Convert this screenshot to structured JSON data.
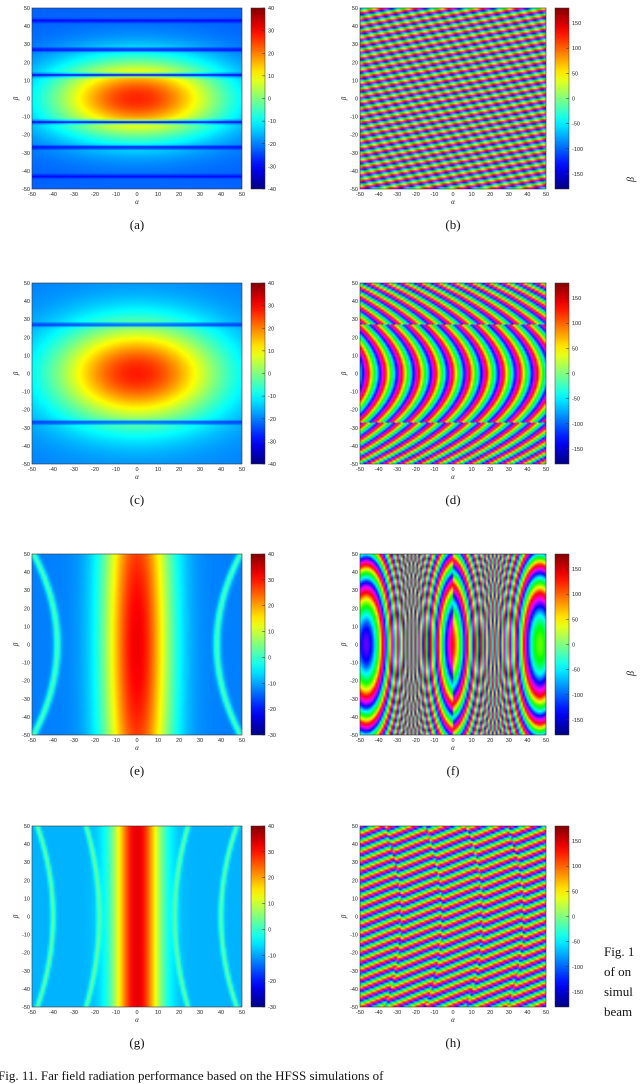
{
  "caption": {
    "main": "Fig. 11.  Far field radiation performance based on the HFSS simulations of",
    "side_lines": [
      "Fig. 1",
      "of on",
      "simul",
      "beam"
    ],
    "side_axis_symbols": [
      "β",
      "β"
    ]
  },
  "chart_data": [
    {
      "label": "(a)",
      "type": "heatmap",
      "kind": "magnitude",
      "pattern": "horizontal_lobes",
      "nulls_beta": [
        -43,
        -27,
        -13,
        13,
        27,
        43
      ],
      "xlabel": "α",
      "ylabel": "β",
      "xlim": [
        -50,
        50
      ],
      "ylim": [
        -50,
        50
      ],
      "xticks": [
        -50,
        -40,
        -30,
        -20,
        -10,
        0,
        10,
        20,
        30,
        40,
        50
      ],
      "yticks": [
        -50,
        -40,
        -30,
        -20,
        -10,
        0,
        10,
        20,
        30,
        40,
        50
      ],
      "colorbar": {
        "min": -40,
        "max": 40,
        "ticks": [
          -40,
          -30,
          -20,
          -10,
          0,
          10,
          20,
          30,
          40
        ]
      }
    },
    {
      "label": "(b)",
      "type": "heatmap",
      "kind": "phase",
      "pattern": "diagonal_fringes",
      "xlabel": "α",
      "ylabel": "β",
      "xlim": [
        -50,
        50
      ],
      "ylim": [
        -50,
        50
      ],
      "xticks": [
        -50,
        -40,
        -30,
        -20,
        -10,
        0,
        10,
        20,
        30,
        40,
        50
      ],
      "yticks": [
        -50,
        -40,
        -30,
        -20,
        -10,
        0,
        10,
        20,
        30,
        40,
        50
      ],
      "colorbar": {
        "min": -180,
        "max": 180,
        "ticks": [
          -150,
          -100,
          -50,
          0,
          50,
          100,
          150
        ]
      }
    },
    {
      "label": "(c)",
      "type": "heatmap",
      "kind": "magnitude",
      "pattern": "wide_central_lobe",
      "nulls_beta": [
        -27,
        27
      ],
      "xlabel": "α",
      "ylabel": "β",
      "xlim": [
        -50,
        50
      ],
      "ylim": [
        -50,
        50
      ],
      "xticks": [
        -50,
        -40,
        -30,
        -20,
        -10,
        0,
        10,
        20,
        30,
        40,
        50
      ],
      "yticks": [
        -50,
        -40,
        -30,
        -20,
        -10,
        0,
        10,
        20,
        30,
        40,
        50
      ],
      "colorbar": {
        "min": -40,
        "max": 40,
        "ticks": [
          -40,
          -30,
          -20,
          -10,
          0,
          10,
          20,
          30,
          40
        ]
      }
    },
    {
      "label": "(d)",
      "type": "heatmap",
      "kind": "phase",
      "pattern": "curved_fringes",
      "xlabel": "α",
      "ylabel": "β",
      "xlim": [
        -50,
        50
      ],
      "ylim": [
        -50,
        50
      ],
      "xticks": [
        -50,
        -40,
        -30,
        -20,
        -10,
        0,
        10,
        20,
        30,
        40,
        50
      ],
      "yticks": [
        -50,
        -40,
        -30,
        -20,
        -10,
        0,
        10,
        20,
        30,
        40,
        50
      ],
      "colorbar": {
        "min": -180,
        "max": 180,
        "ticks": [
          -150,
          -100,
          -50,
          0,
          50,
          100,
          150
        ]
      }
    },
    {
      "label": "(e)",
      "type": "heatmap",
      "kind": "magnitude",
      "pattern": "vertical_beam",
      "null_alpha_at_beta0": 38,
      "xlabel": "α",
      "ylabel": "β",
      "xlim": [
        -50,
        50
      ],
      "ylim": [
        -50,
        50
      ],
      "xticks": [
        -50,
        -40,
        -30,
        -20,
        -10,
        0,
        10,
        20,
        30,
        40,
        50
      ],
      "yticks": [
        -50,
        -40,
        -30,
        -20,
        -10,
        0,
        10,
        20,
        30,
        40,
        50
      ],
      "colorbar": {
        "min": -30,
        "max": 40,
        "ticks": [
          -30,
          -20,
          -10,
          0,
          10,
          20,
          30,
          40
        ]
      }
    },
    {
      "label": "(f)",
      "type": "heatmap",
      "kind": "phase",
      "pattern": "vertical_arcs",
      "xlabel": "α",
      "ylabel": "β",
      "xlim": [
        -50,
        50
      ],
      "ylim": [
        -50,
        50
      ],
      "xticks": [
        -50,
        -40,
        -30,
        -20,
        -10,
        0,
        10,
        20,
        30,
        40,
        50
      ],
      "yticks": [
        -50,
        -40,
        -30,
        -20,
        -10,
        0,
        10,
        20,
        30,
        40,
        50
      ],
      "colorbar": {
        "min": -180,
        "max": 180,
        "ticks": [
          -150,
          -100,
          -50,
          0,
          50,
          100,
          150
        ]
      }
    },
    {
      "label": "(g)",
      "type": "heatmap",
      "kind": "magnitude",
      "pattern": "narrow_vertical_beam",
      "null_alpha_at_beta0": [
        18,
        40
      ],
      "xlabel": "α",
      "ylabel": "β",
      "xlim": [
        -50,
        50
      ],
      "ylim": [
        -50,
        50
      ],
      "xticks": [
        -50,
        -40,
        -30,
        -20,
        -10,
        0,
        10,
        20,
        30,
        40,
        50
      ],
      "yticks": [
        -50,
        -40,
        -30,
        -20,
        -10,
        0,
        10,
        20,
        30,
        40,
        50
      ],
      "colorbar": {
        "min": -30,
        "max": 40,
        "ticks": [
          -30,
          -20,
          -10,
          0,
          10,
          20,
          30,
          40
        ]
      }
    },
    {
      "label": "(h)",
      "type": "heatmap",
      "kind": "phase",
      "pattern": "diagonal_fringes_with_arcs",
      "xlabel": "α",
      "ylabel": "β",
      "xlim": [
        -50,
        50
      ],
      "ylim": [
        -50,
        50
      ],
      "xticks": [
        -50,
        -40,
        -30,
        -20,
        -10,
        0,
        10,
        20,
        30,
        40,
        50
      ],
      "yticks": [
        -50,
        -40,
        -30,
        -20,
        -10,
        0,
        10,
        20,
        30,
        40,
        50
      ],
      "colorbar": {
        "min": -180,
        "max": 180,
        "ticks": [
          -150,
          -100,
          -50,
          0,
          50,
          100,
          150
        ]
      }
    }
  ]
}
